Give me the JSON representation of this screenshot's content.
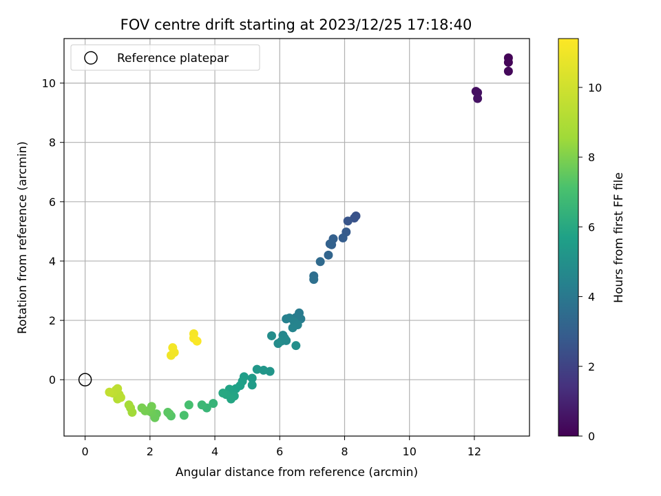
{
  "chart_data": {
    "type": "scatter",
    "title": "FOV centre drift starting at 2023/12/25 17:18:40",
    "xlabel": "Angular distance from reference (arcmin)",
    "ylabel": "Rotation from reference (arcmin)",
    "colorbar_label": "Hours from first FF file",
    "xlim": [
      -0.65,
      13.7
    ],
    "ylim": [
      -1.9,
      11.5
    ],
    "x_ticks": [
      0,
      2,
      4,
      6,
      8,
      10,
      12
    ],
    "y_ticks": [
      0,
      2,
      4,
      6,
      8,
      10
    ],
    "colorbar_range": [
      0,
      11.4
    ],
    "colorbar_ticks": [
      0,
      2,
      4,
      6,
      8,
      10
    ],
    "colormap": "viridis",
    "grid": true,
    "legend": {
      "placement": "upper-left",
      "entries": [
        "Reference platepar"
      ]
    },
    "reference_point": {
      "x": 0,
      "y": 0
    },
    "points": [
      {
        "x": 13.05,
        "y": 10.85,
        "c": 0.1
      },
      {
        "x": 13.05,
        "y": 10.7,
        "c": 0.15
      },
      {
        "x": 13.05,
        "y": 10.4,
        "c": 0.2
      },
      {
        "x": 12.05,
        "y": 9.72,
        "c": 0.4
      },
      {
        "x": 12.1,
        "y": 9.68,
        "c": 0.45
      },
      {
        "x": 12.1,
        "y": 9.48,
        "c": 0.5
      },
      {
        "x": 8.35,
        "y": 5.52,
        "c": 2.5
      },
      {
        "x": 8.3,
        "y": 5.45,
        "c": 2.55
      },
      {
        "x": 8.1,
        "y": 5.35,
        "c": 2.6
      },
      {
        "x": 8.05,
        "y": 4.98,
        "c": 2.8
      },
      {
        "x": 7.95,
        "y": 4.78,
        "c": 2.9
      },
      {
        "x": 7.65,
        "y": 4.75,
        "c": 3.0
      },
      {
        "x": 7.6,
        "y": 4.55,
        "c": 3.05
      },
      {
        "x": 7.55,
        "y": 4.58,
        "c": 3.1
      },
      {
        "x": 7.5,
        "y": 4.2,
        "c": 3.2
      },
      {
        "x": 7.25,
        "y": 3.98,
        "c": 3.4
      },
      {
        "x": 7.05,
        "y": 3.5,
        "c": 3.6
      },
      {
        "x": 7.05,
        "y": 3.38,
        "c": 3.65
      },
      {
        "x": 6.6,
        "y": 2.25,
        "c": 4.1
      },
      {
        "x": 6.65,
        "y": 2.05,
        "c": 4.2
      },
      {
        "x": 6.5,
        "y": 2.1,
        "c": 4.15
      },
      {
        "x": 6.3,
        "y": 2.08,
        "c": 4.3
      },
      {
        "x": 6.2,
        "y": 2.05,
        "c": 4.35
      },
      {
        "x": 6.45,
        "y": 1.95,
        "c": 4.4
      },
      {
        "x": 6.55,
        "y": 1.85,
        "c": 4.45
      },
      {
        "x": 6.4,
        "y": 1.75,
        "c": 4.5
      },
      {
        "x": 6.1,
        "y": 1.5,
        "c": 4.6
      },
      {
        "x": 6.15,
        "y": 1.4,
        "c": 4.65
      },
      {
        "x": 6.2,
        "y": 1.32,
        "c": 4.7
      },
      {
        "x": 6.05,
        "y": 1.3,
        "c": 4.75
      },
      {
        "x": 5.95,
        "y": 1.22,
        "c": 4.8
      },
      {
        "x": 5.75,
        "y": 1.48,
        "c": 4.85
      },
      {
        "x": 6.5,
        "y": 1.15,
        "c": 4.9
      },
      {
        "x": 5.7,
        "y": 0.28,
        "c": 5.2
      },
      {
        "x": 5.5,
        "y": 0.32,
        "c": 5.25
      },
      {
        "x": 5.3,
        "y": 0.35,
        "c": 5.3
      },
      {
        "x": 5.15,
        "y": 0.05,
        "c": 5.4
      },
      {
        "x": 5.15,
        "y": -0.18,
        "c": 5.5
      },
      {
        "x": 4.9,
        "y": 0.1,
        "c": 5.55
      },
      {
        "x": 4.85,
        "y": -0.05,
        "c": 5.6
      },
      {
        "x": 4.78,
        "y": -0.2,
        "c": 5.65
      },
      {
        "x": 4.65,
        "y": -0.3,
        "c": 5.7
      },
      {
        "x": 4.55,
        "y": -0.4,
        "c": 5.75
      },
      {
        "x": 4.45,
        "y": -0.32,
        "c": 5.8
      },
      {
        "x": 4.6,
        "y": -0.55,
        "c": 5.85
      },
      {
        "x": 4.5,
        "y": -0.65,
        "c": 5.9
      },
      {
        "x": 4.35,
        "y": -0.5,
        "c": 5.95
      },
      {
        "x": 4.25,
        "y": -0.45,
        "c": 6.0
      },
      {
        "x": 3.95,
        "y": -0.8,
        "c": 6.5
      },
      {
        "x": 3.75,
        "y": -0.95,
        "c": 6.6
      },
      {
        "x": 3.6,
        "y": -0.85,
        "c": 6.7
      },
      {
        "x": 3.2,
        "y": -0.85,
        "c": 7.0
      },
      {
        "x": 3.05,
        "y": -1.2,
        "c": 7.1
      },
      {
        "x": 2.65,
        "y": -1.22,
        "c": 7.3
      },
      {
        "x": 2.6,
        "y": -1.15,
        "c": 7.35
      },
      {
        "x": 2.55,
        "y": -1.1,
        "c": 7.4
      },
      {
        "x": 2.2,
        "y": -1.15,
        "c": 7.6
      },
      {
        "x": 2.15,
        "y": -1.28,
        "c": 7.65
      },
      {
        "x": 2.05,
        "y": -1.1,
        "c": 7.7
      },
      {
        "x": 1.95,
        "y": -1.05,
        "c": 7.75
      },
      {
        "x": 2.05,
        "y": -0.9,
        "c": 7.8
      },
      {
        "x": 1.85,
        "y": -1.05,
        "c": 7.85
      },
      {
        "x": 1.75,
        "y": -0.95,
        "c": 7.9
      },
      {
        "x": 1.4,
        "y": -0.95,
        "c": 8.5
      },
      {
        "x": 1.45,
        "y": -1.1,
        "c": 8.6
      },
      {
        "x": 1.35,
        "y": -0.85,
        "c": 8.7
      },
      {
        "x": 1.0,
        "y": -0.65,
        "c": 9.2
      },
      {
        "x": 1.05,
        "y": -0.5,
        "c": 9.3
      },
      {
        "x": 1.1,
        "y": -0.6,
        "c": 9.35
      },
      {
        "x": 0.95,
        "y": -0.35,
        "c": 9.4
      },
      {
        "x": 1.0,
        "y": -0.3,
        "c": 9.45
      },
      {
        "x": 0.85,
        "y": -0.45,
        "c": 9.5
      },
      {
        "x": 0.75,
        "y": -0.42,
        "c": 9.6
      },
      {
        "x": 2.65,
        "y": 0.82,
        "c": 11.0
      },
      {
        "x": 2.75,
        "y": 0.92,
        "c": 11.05
      },
      {
        "x": 2.7,
        "y": 1.08,
        "c": 11.1
      },
      {
        "x": 3.35,
        "y": 1.55,
        "c": 11.2
      },
      {
        "x": 3.35,
        "y": 1.4,
        "c": 11.25
      },
      {
        "x": 3.45,
        "y": 1.3,
        "c": 11.3
      }
    ]
  }
}
